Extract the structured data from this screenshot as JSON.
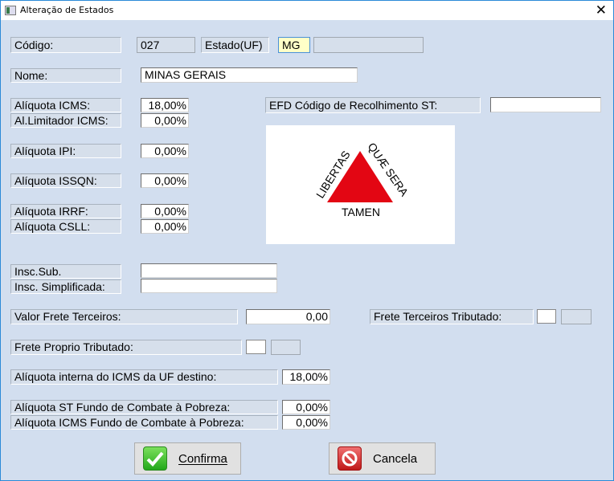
{
  "window": {
    "title": "Alteração de Estados",
    "close": "✕"
  },
  "codigo": {
    "label": "Código:",
    "value": "027"
  },
  "estado": {
    "label": "Estado(UF)",
    "value": "MG",
    "extra": ""
  },
  "nome": {
    "label": "Nome:",
    "value": "MINAS GERAIS"
  },
  "aliquota_icms": {
    "label": "Alíquota ICMS:",
    "value": "18,00%"
  },
  "limitador_icms": {
    "label": "Al.Limitador ICMS:",
    "value": "0,00%"
  },
  "efd": {
    "label": "EFD Código de Recolhimento ST:",
    "value": ""
  },
  "aliquota_ipi": {
    "label": "Alíquota IPI:",
    "value": "0,00%"
  },
  "aliquota_issqn": {
    "label": "Alíquota ISSQN:",
    "value": "0,00%"
  },
  "aliquota_irrf": {
    "label": "Alíquota IRRF:",
    "value": "0,00%"
  },
  "aliquota_csll": {
    "label": "Alíquota CSLL:",
    "value": "0,00%"
  },
  "flag": {
    "left_text": "LIBERTAS",
    "right_text": "QUÆ SERA",
    "bottom_text": "TAMEN",
    "color": "#e30613"
  },
  "insc_sub": {
    "label": "Insc.Sub.",
    "value": ""
  },
  "insc_simpl": {
    "label": "Insc. Simplificada:",
    "value": ""
  },
  "valor_frete": {
    "label": "Valor Frete Terceiros:",
    "value": "0,00"
  },
  "frete_terc_trib": {
    "label": "Frete Terceiros Tributado:",
    "checked": false
  },
  "frete_prop_trib": {
    "label": "Frete Proprio Tributado:",
    "checked": false
  },
  "aliquota_interna": {
    "label": "Alíquota interna do ICMS da UF destino:",
    "value": "18,00%"
  },
  "aliquota_st_fcp": {
    "label": "Alíquota ST Fundo de Combate à Pobreza:",
    "value": "0,00%"
  },
  "aliquota_icms_fcp": {
    "label": "Alíquota ICMS Fundo de Combate à Pobreza:",
    "value": "0,00%"
  },
  "buttons": {
    "confirm": "Confirma",
    "cancel": "Cancela"
  }
}
